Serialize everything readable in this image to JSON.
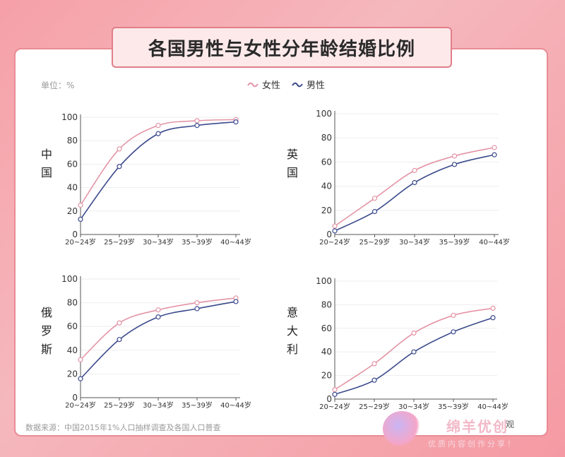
{
  "title": "各国男性与女性分年龄结婚比例",
  "unit": "单位：%",
  "legend": {
    "female": "女性",
    "male": "男性"
  },
  "source": "数据来源：中国2015年1%人口抽样调查及各国人口普查",
  "watermark": {
    "main": "绵羊优创",
    "sub": "优质内容创作分享！",
    "small": "观"
  },
  "colors": {
    "female": "#e394a5",
    "male": "#3b4a8c",
    "grid": "#eeeeee",
    "axis": "#555555"
  },
  "chart_data": [
    {
      "type": "line",
      "country": "中国",
      "categories": [
        "20~24岁",
        "25~29岁",
        "30~34岁",
        "35~39岁",
        "40~44岁"
      ],
      "ylim": [
        0,
        100
      ],
      "yticks": [
        0,
        20,
        40,
        60,
        80,
        100
      ],
      "series": [
        {
          "name": "女性",
          "values": [
            25,
            73,
            93,
            97,
            98
          ]
        },
        {
          "name": "男性",
          "values": [
            13,
            58,
            86,
            93,
            96
          ]
        }
      ]
    },
    {
      "type": "line",
      "country": "英国",
      "categories": [
        "20~24岁",
        "25~29岁",
        "30~34岁",
        "35~39岁",
        "40~44岁"
      ],
      "ylim": [
        0,
        100
      ],
      "yticks": [
        0,
        20,
        40,
        60,
        80,
        100
      ],
      "series": [
        {
          "name": "女性",
          "values": [
            7,
            30,
            53,
            65,
            72
          ]
        },
        {
          "name": "男性",
          "values": [
            3,
            19,
            43,
            58,
            66
          ]
        }
      ]
    },
    {
      "type": "line",
      "country": "俄罗斯",
      "categories": [
        "20~24岁",
        "25~29岁",
        "30~34岁",
        "35~39岁",
        "40~44岁"
      ],
      "ylim": [
        0,
        100
      ],
      "yticks": [
        0,
        20,
        40,
        60,
        80,
        100
      ],
      "series": [
        {
          "name": "女性",
          "values": [
            32,
            63,
            74,
            80,
            84
          ]
        },
        {
          "name": "男性",
          "values": [
            16,
            49,
            68,
            75,
            81
          ]
        }
      ]
    },
    {
      "type": "line",
      "country": "意大利",
      "categories": [
        "20~24岁",
        "25~29岁",
        "30~34岁",
        "35~39岁",
        "40~44岁"
      ],
      "ylim": [
        0,
        100
      ],
      "yticks": [
        0,
        20,
        40,
        60,
        80,
        100
      ],
      "series": [
        {
          "name": "女性",
          "values": [
            8,
            30,
            56,
            71,
            77
          ]
        },
        {
          "name": "男性",
          "values": [
            4,
            16,
            40,
            57,
            69
          ]
        }
      ]
    }
  ]
}
